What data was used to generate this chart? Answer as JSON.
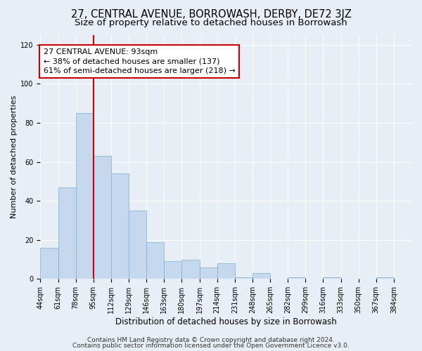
{
  "title": "27, CENTRAL AVENUE, BORROWASH, DERBY, DE72 3JZ",
  "subtitle": "Size of property relative to detached houses in Borrowash",
  "xlabel": "Distribution of detached houses by size in Borrowash",
  "ylabel": "Number of detached properties",
  "bin_labels": [
    "44sqm",
    "61sqm",
    "78sqm",
    "95sqm",
    "112sqm",
    "129sqm",
    "146sqm",
    "163sqm",
    "180sqm",
    "197sqm",
    "214sqm",
    "231sqm",
    "248sqm",
    "265sqm",
    "282sqm",
    "299sqm",
    "316sqm",
    "333sqm",
    "350sqm",
    "367sqm",
    "384sqm"
  ],
  "bar_heights": [
    16,
    47,
    85,
    63,
    54,
    35,
    19,
    9,
    10,
    6,
    8,
    1,
    3,
    0,
    1,
    0,
    1,
    0,
    0,
    1,
    0
  ],
  "bar_color": "#c5d8ed",
  "bar_edge_color": "#7eaecf",
  "bar_width": 1.0,
  "vline_x": 3,
  "vline_color": "#cc0000",
  "annotation_line1": "27 CENTRAL AVENUE: 93sqm",
  "annotation_line2": "← 38% of detached houses are smaller (137)",
  "annotation_line3": "61% of semi-detached houses are larger (218) →",
  "ylim": [
    0,
    125
  ],
  "yticks": [
    0,
    20,
    40,
    60,
    80,
    100,
    120
  ],
  "bg_color": "#e8eef5",
  "grid_color": "#ffffff",
  "footer_line1": "Contains HM Land Registry data © Crown copyright and database right 2024.",
  "footer_line2": "Contains public sector information licensed under the Open Government Licence v3.0.",
  "title_fontsize": 10.5,
  "subtitle_fontsize": 9.5,
  "xlabel_fontsize": 8.5,
  "ylabel_fontsize": 8,
  "tick_fontsize": 7,
  "annotation_fontsize": 8,
  "footer_fontsize": 6.5
}
